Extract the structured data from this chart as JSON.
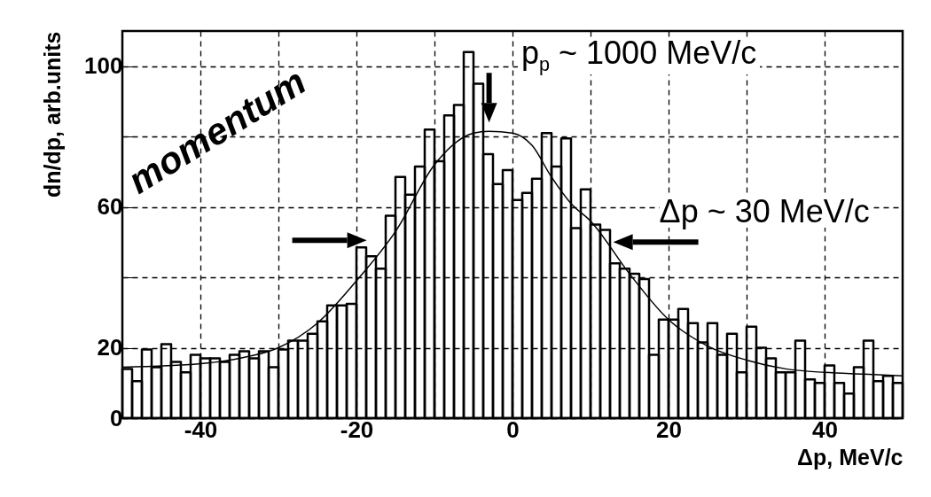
{
  "chart_data": {
    "type": "histogram",
    "xlabel": "Δp, MeV/c",
    "ylabel": "dn/dp, arb.units",
    "color": "#000000",
    "bins": [
      -50,
      -48.75,
      -47.5,
      -46.25,
      -45,
      -43.75,
      -42.5,
      -41.25,
      -40,
      -38.75,
      -37.5,
      -36.25,
      -35,
      -33.75,
      -32.5,
      -31.25,
      -30,
      -28.75,
      -27.5,
      -26.25,
      -25,
      -23.75,
      -22.5,
      -21.25,
      -20,
      -18.75,
      -17.5,
      -16.25,
      -15,
      -13.75,
      -12.5,
      -11.25,
      -10,
      -8.75,
      -7.5,
      -6.25,
      -5,
      -3.75,
      -2.5,
      -1.25,
      0,
      1.25,
      2.5,
      3.75,
      5,
      6.25,
      7.5,
      8.75,
      10,
      11.25,
      12.5,
      13.75,
      15,
      16.25,
      17.5,
      18.75,
      20,
      21.25,
      22.5,
      23.75,
      25,
      26.25,
      27.5,
      28.75,
      30,
      31.25,
      32.5,
      33.75,
      35,
      36.25,
      37.5,
      38.75,
      40,
      41.25,
      42.5,
      43.75,
      45,
      46.25,
      47.5,
      48.75,
      50
    ],
    "values": [
      14,
      10.5,
      19.5,
      14.5,
      21,
      16,
      13,
      18,
      17,
      17,
      16,
      18,
      19,
      17,
      19,
      14.5,
      19.5,
      22,
      22,
      24,
      27.5,
      32,
      32,
      32.5,
      48.5,
      46,
      42.5,
      57.5,
      68.5,
      63.5,
      71.5,
      82,
      73,
      86,
      89,
      104,
      95,
      75,
      66.5,
      70.5,
      62,
      64,
      68,
      81,
      71.5,
      79.5,
      54,
      65,
      55,
      53.5,
      44,
      42.5,
      41,
      39.5,
      18,
      28,
      28,
      31,
      27,
      21.5,
      27,
      18,
      24,
      13,
      26,
      20,
      17,
      13,
      13,
      22,
      11,
      10,
      15,
      10,
      7,
      14.5,
      22,
      10.5,
      12,
      10
    ],
    "series": [
      {
        "type": "line",
        "color": "#000000",
        "x": [
          -50,
          -40,
          -35,
          -30,
          -25,
          -20,
          -15,
          -10,
          -5,
          -3,
          0,
          2.5,
          5,
          7.5,
          10,
          15,
          20,
          25,
          30,
          35,
          40,
          45,
          50
        ],
        "values": [
          14.5,
          15.5,
          17,
          20,
          27,
          39,
          53,
          72,
          81,
          81.5,
          81,
          77.5,
          68.5,
          61,
          56,
          41,
          28,
          20.5,
          16.5,
          14,
          13,
          12.5,
          12
        ]
      }
    ],
    "xlim": [
      -50,
      50
    ],
    "xticks": [
      -40,
      {
        "value": -30,
        "label": null
      },
      -20,
      {
        "value": -10,
        "label": null
      },
      0,
      {
        "value": 10,
        "label": null
      },
      20,
      {
        "value": 30,
        "label": null
      },
      40
    ],
    "ylim": [
      0,
      110
    ],
    "yticks": [
      0,
      20,
      {
        "value": 40,
        "label": null
      },
      60,
      {
        "value": 80,
        "label": null
      },
      100
    ],
    "grid": true,
    "annotations": [
      {
        "text": "p$_{p}$ ~ 1000 MeV/c",
        "x": -3,
        "y": 82
      },
      {
        "text": "Δp ~ 30 MeV/c",
        "x": 12,
        "y": 50
      },
      "momentum"
    ]
  }
}
